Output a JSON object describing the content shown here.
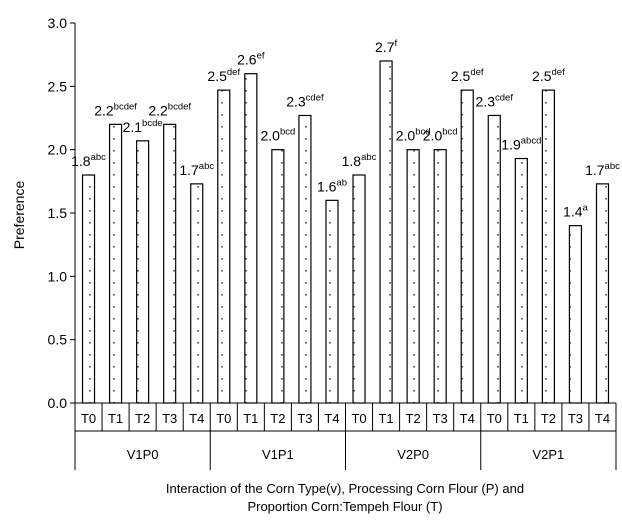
{
  "chart_data": {
    "type": "bar",
    "ylabel": "Preference",
    "xlabel_lines": [
      "Interaction of the Corn Type(v), Processing Corn Flour (P) and",
      "Proportion Corn:Tempeh Flour (T)"
    ],
    "ylim": [
      0,
      3.0
    ],
    "yticks": [
      "0.0",
      "0.5",
      "1.0",
      "1.5",
      "2.0",
      "2.5",
      "3.0"
    ],
    "groups": [
      "V1P0",
      "V1P1",
      "V2P0",
      "V2P1"
    ],
    "categories": [
      "T0",
      "T1",
      "T2",
      "T3",
      "T4"
    ],
    "bar_fill": "#ffffff",
    "bar_stroke": "#000000",
    "series": [
      {
        "group": "V1P0",
        "values": [
          1.8,
          2.2,
          2.07,
          2.2,
          1.73
        ],
        "labels": [
          "1.8",
          "2.2",
          "2.1",
          "2.2",
          "1.7"
        ],
        "letters": [
          "abc",
          "bcdef",
          "bcde",
          "bcdef",
          "abc"
        ]
      },
      {
        "group": "V1P1",
        "values": [
          2.47,
          2.6,
          2.0,
          2.27,
          1.6
        ],
        "labels": [
          "2.5",
          "2.6",
          "2.0",
          "2.3",
          "1.6"
        ],
        "letters": [
          "def",
          "ef",
          "bcd",
          "cdef",
          "ab"
        ]
      },
      {
        "group": "V2P0",
        "values": [
          1.8,
          2.7,
          2.0,
          2.0,
          2.47
        ],
        "labels": [
          "1.8",
          "2.7",
          "2.0",
          "2.0",
          "2.5"
        ],
        "letters": [
          "abc",
          "f",
          "bcd",
          "bcd",
          "def"
        ]
      },
      {
        "group": "V2P1",
        "values": [
          2.27,
          1.93,
          2.47,
          1.4,
          1.73
        ],
        "labels": [
          "2.3",
          "1.9",
          "2.5",
          "1.4",
          "1.7"
        ],
        "letters": [
          "cdef",
          "abcd",
          "def",
          "a",
          "abc"
        ]
      }
    ]
  }
}
